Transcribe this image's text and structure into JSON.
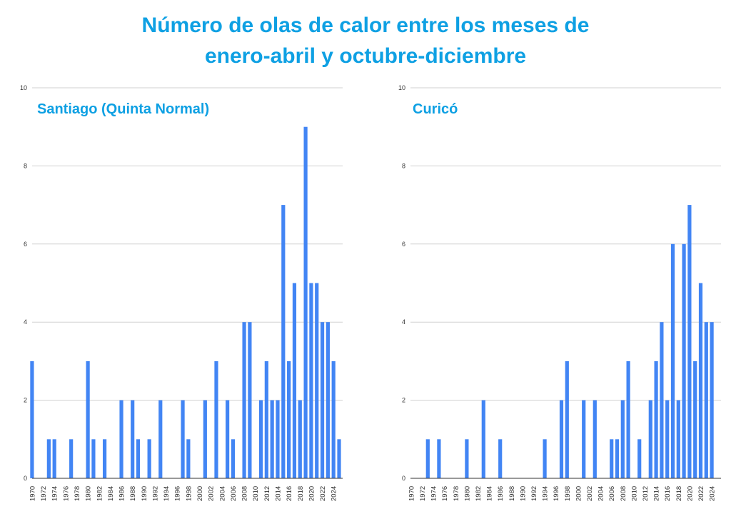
{
  "title_line1": "Número de olas de calor entre los meses de",
  "title_line2": "enero-abril y octubre-diciembre",
  "bar_color": "#4285f4",
  "chart_data": [
    {
      "type": "bar",
      "title": "Santiago (Quinta Normal)",
      "ylim": [
        0,
        10
      ],
      "yticks": [
        0,
        2,
        4,
        6,
        8,
        10
      ],
      "grid": true,
      "first_year": 1970,
      "categories": [
        "1970",
        "1971",
        "1972",
        "1973",
        "1974",
        "1975",
        "1976",
        "1977",
        "1978",
        "1979",
        "1980",
        "1981",
        "1982",
        "1983",
        "1984",
        "1985",
        "1986",
        "1987",
        "1988",
        "1989",
        "1990",
        "1991",
        "1992",
        "1993",
        "1994",
        "1995",
        "1996",
        "1997",
        "1998",
        "1999",
        "2000",
        "2001",
        "2002",
        "2003",
        "2004",
        "2005",
        "2006",
        "2007",
        "2008",
        "2009",
        "2010",
        "2011",
        "2012",
        "2013",
        "2014",
        "2015",
        "2016",
        "2017",
        "2018",
        "2019",
        "2020",
        "2021",
        "2022",
        "2023",
        "2024",
        "2025"
      ],
      "values": [
        3,
        0,
        0,
        1,
        1,
        0,
        0,
        1,
        0,
        0,
        3,
        1,
        0,
        1,
        0,
        0,
        2,
        0,
        2,
        1,
        0,
        1,
        0,
        2,
        0,
        0,
        0,
        2,
        1,
        0,
        0,
        2,
        0,
        3,
        0,
        2,
        1,
        0,
        4,
        4,
        0,
        2,
        3,
        2,
        2,
        7,
        3,
        5,
        2,
        9,
        5,
        5,
        4,
        4,
        3,
        1
      ]
    },
    {
      "type": "bar",
      "title": "Curicó",
      "ylim": [
        0,
        10
      ],
      "yticks": [
        0,
        2,
        4,
        6,
        8,
        10
      ],
      "grid": true,
      "categories": [
        "1970",
        "1971",
        "1972",
        "1973",
        "1974",
        "1975",
        "1976",
        "1977",
        "1978",
        "1979",
        "1980",
        "1981",
        "1982",
        "1983",
        "1984",
        "1985",
        "1986",
        "1987",
        "1988",
        "1989",
        "1990",
        "1991",
        "1992",
        "1993",
        "1994",
        "1995",
        "1996",
        "1997",
        "1998",
        "1999",
        "2000",
        "2001",
        "2002",
        "2003",
        "2004",
        "2005",
        "2006",
        "2007",
        "2008",
        "2009",
        "2010",
        "2011",
        "2012",
        "2013",
        "2014",
        "2015",
        "2016",
        "2017",
        "2018",
        "2019",
        "2020",
        "2021",
        "2022",
        "2023",
        "2024"
      ],
      "values": [
        0,
        0,
        0,
        1,
        0,
        1,
        0,
        0,
        0,
        0,
        1,
        0,
        0,
        2,
        0,
        0,
        1,
        0,
        0,
        0,
        0,
        0,
        0,
        0,
        1,
        0,
        0,
        2,
        3,
        0,
        0,
        2,
        0,
        2,
        0,
        0,
        1,
        1,
        2,
        3,
        0,
        1,
        0,
        2,
        3,
        4,
        2,
        6,
        2,
        6,
        7,
        3,
        5,
        4,
        4
      ]
    }
  ]
}
